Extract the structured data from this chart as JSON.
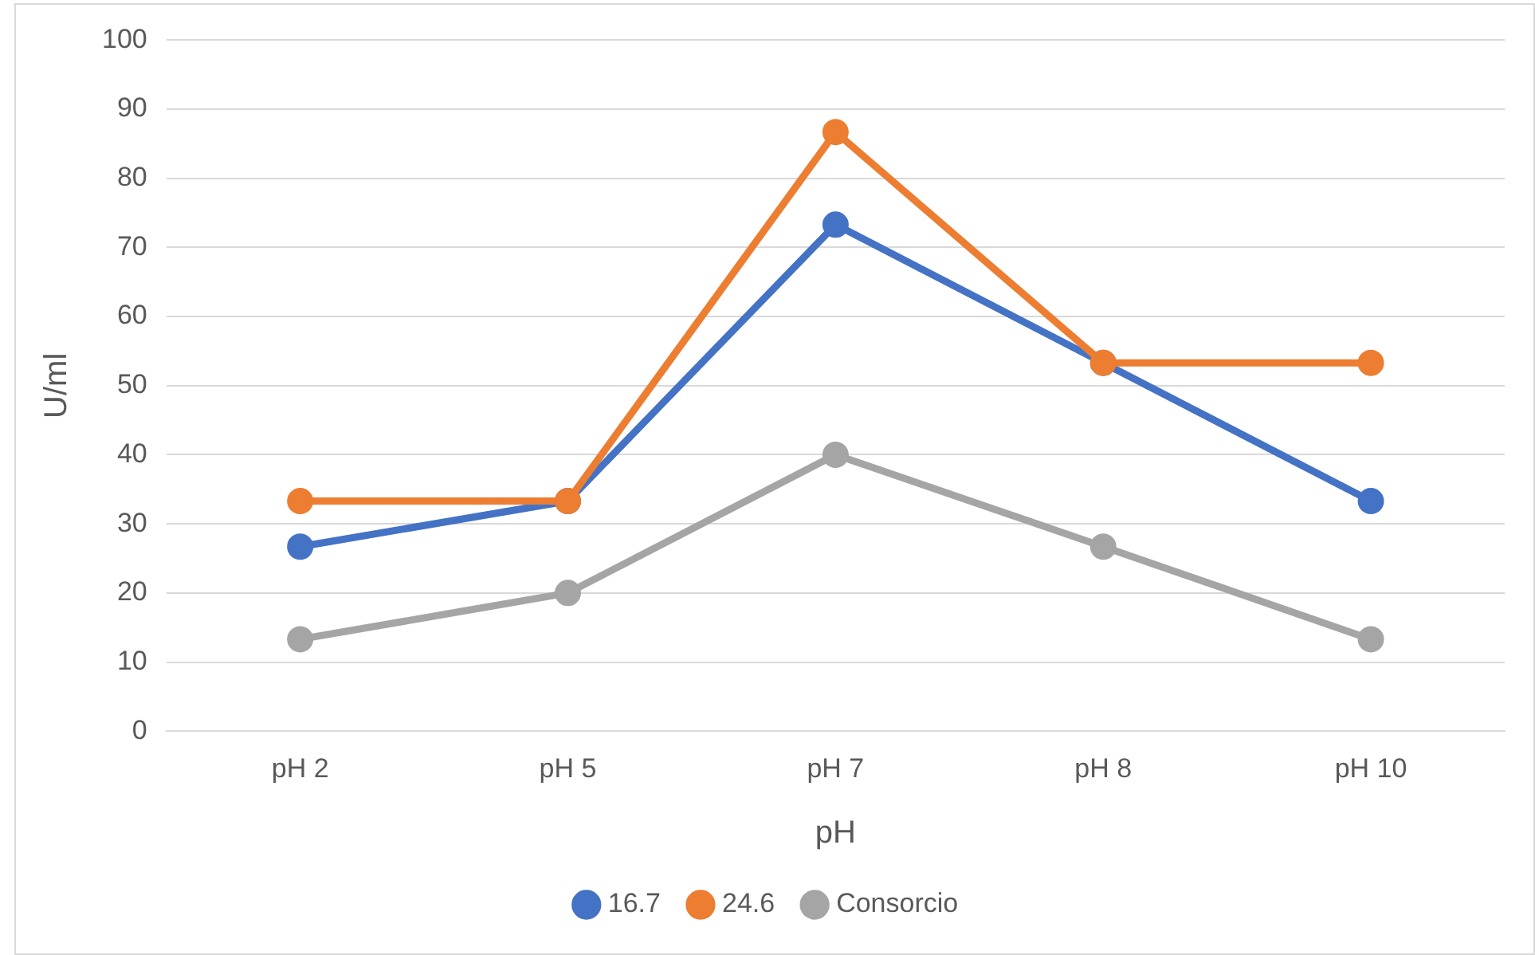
{
  "chart_data": {
    "type": "line",
    "xlabel": "pH",
    "ylabel": "U/ml",
    "categories": [
      "pH 2",
      "pH 5",
      "pH 7",
      "pH 8",
      "pH 10"
    ],
    "series": [
      {
        "name": "16.7",
        "color": "#4472c4",
        "values": [
          26.7,
          33.3,
          73.3,
          53.3,
          33.3
        ]
      },
      {
        "name": "24.6",
        "color": "#ed7d31",
        "values": [
          33.3,
          33.3,
          86.7,
          53.3,
          53.3
        ]
      },
      {
        "name": "Consorcio",
        "color": "#a5a5a5",
        "values": [
          13.3,
          20,
          40,
          26.7,
          13.3
        ]
      }
    ],
    "ylim": [
      0,
      100
    ],
    "yticks": [
      0,
      10,
      20,
      30,
      40,
      50,
      60,
      70,
      80,
      90,
      100
    ],
    "grid": "y",
    "legend": "bottom",
    "marker": "circle",
    "line_style": "solid"
  }
}
